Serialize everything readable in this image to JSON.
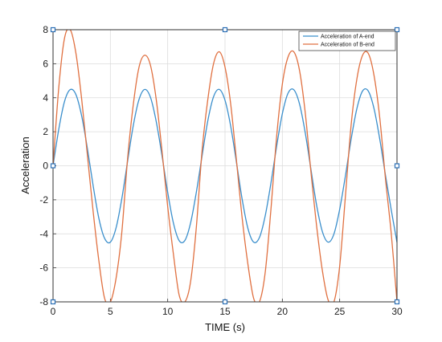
{
  "chart_data": {
    "type": "line",
    "title": "",
    "xlabel": "TIME (s)",
    "ylabel": "Acceleration",
    "xlim": [
      0,
      30
    ],
    "ylim": [
      -8,
      8
    ],
    "x_ticks": [
      0,
      5,
      10,
      15,
      20,
      25,
      30
    ],
    "y_ticks": [
      -8,
      -6,
      -4,
      -2,
      0,
      2,
      4,
      6,
      8
    ],
    "grid": true,
    "legend_position": "top-right",
    "series": [
      {
        "name": "Acceleration of A-end",
        "color": "#3b8fcc",
        "x": [
          0,
          0.5,
          1,
          1.5,
          2,
          2.5,
          3,
          3.5,
          4,
          4.5,
          5,
          5.5,
          6,
          6.5,
          7,
          7.5,
          8,
          8.5,
          9,
          9.5,
          10,
          10.5,
          11,
          11.5,
          12,
          12.5,
          13,
          13.5,
          14,
          14.5,
          15,
          15.5,
          16,
          16.5,
          17,
          17.5,
          18,
          18.5,
          19,
          19.5,
          20,
          20.5,
          21,
          21.5,
          22,
          22.5,
          23,
          23.5,
          24,
          24.5,
          25,
          25.5,
          26,
          26.5,
          27,
          27.5,
          28,
          28.5,
          29,
          29.5,
          30
        ],
        "y": [
          0,
          2.15,
          3.78,
          4.48,
          4.18,
          2.92,
          1.0,
          -1.18,
          -3.1,
          -4.27,
          -4.49,
          -3.64,
          -1.93,
          0.25,
          2.37,
          3.9,
          4.49,
          4.02,
          2.6,
          0.61,
          -1.56,
          -3.37,
          -4.4,
          -4.39,
          -3.35,
          -1.55,
          0.59,
          2.65,
          4.06,
          4.49,
          3.85,
          2.31,
          0.19,
          -1.99,
          -3.69,
          -4.49,
          -4.22,
          -2.96,
          -1.04,
          1.14,
          3.06,
          4.27,
          4.47,
          3.63,
          1.93,
          -0.24,
          -2.36,
          -3.89,
          -4.49,
          -4.01,
          -2.56,
          -0.6,
          1.56,
          3.36,
          4.4,
          4.39,
          3.35,
          1.55,
          -0.58,
          -2.6,
          -4.5
        ]
      },
      {
        "name": "Acceleration of B-end",
        "color": "#e07040",
        "x": [
          0,
          0.5,
          1,
          1.5,
          2,
          2.5,
          3,
          3.5,
          4,
          4.5,
          5,
          5.5,
          6,
          6.5,
          7,
          7.5,
          8,
          8.5,
          9,
          9.5,
          10,
          10.5,
          11,
          11.5,
          12,
          12.5,
          13,
          13.5,
          14,
          14.5,
          15,
          15.5,
          16,
          16.5,
          17,
          17.5,
          18,
          18.5,
          19,
          19.5,
          20,
          20.5,
          21,
          21.5,
          22,
          22.5,
          23,
          23.5,
          24,
          24.5,
          25,
          25.5,
          26,
          26.5,
          27,
          27.5,
          28,
          28.5,
          29,
          29.5,
          30
        ],
        "y": [
          0,
          4.6,
          7.5,
          8.0,
          6.6,
          3.9,
          0.6,
          -2.7,
          -5.6,
          -7.8,
          -8.0,
          -6.6,
          -3.9,
          0.4,
          3.6,
          5.8,
          6.5,
          5.9,
          3.9,
          0.9,
          -2.4,
          -5.2,
          -7.6,
          -8.0,
          -6.8,
          -3.6,
          0.9,
          3.9,
          6.0,
          6.7,
          5.8,
          3.6,
          0.3,
          -3.1,
          -5.8,
          -7.8,
          -8.0,
          -6.3,
          -2.6,
          1.7,
          4.8,
          6.4,
          6.7,
          5.6,
          3.1,
          -0.4,
          -3.6,
          -6.2,
          -7.9,
          -8.0,
          -5.9,
          -1.8,
          2.4,
          5.1,
          6.5,
          6.6,
          5.3,
          2.8,
          -0.8,
          -4.0,
          -8.0
        ]
      }
    ]
  }
}
